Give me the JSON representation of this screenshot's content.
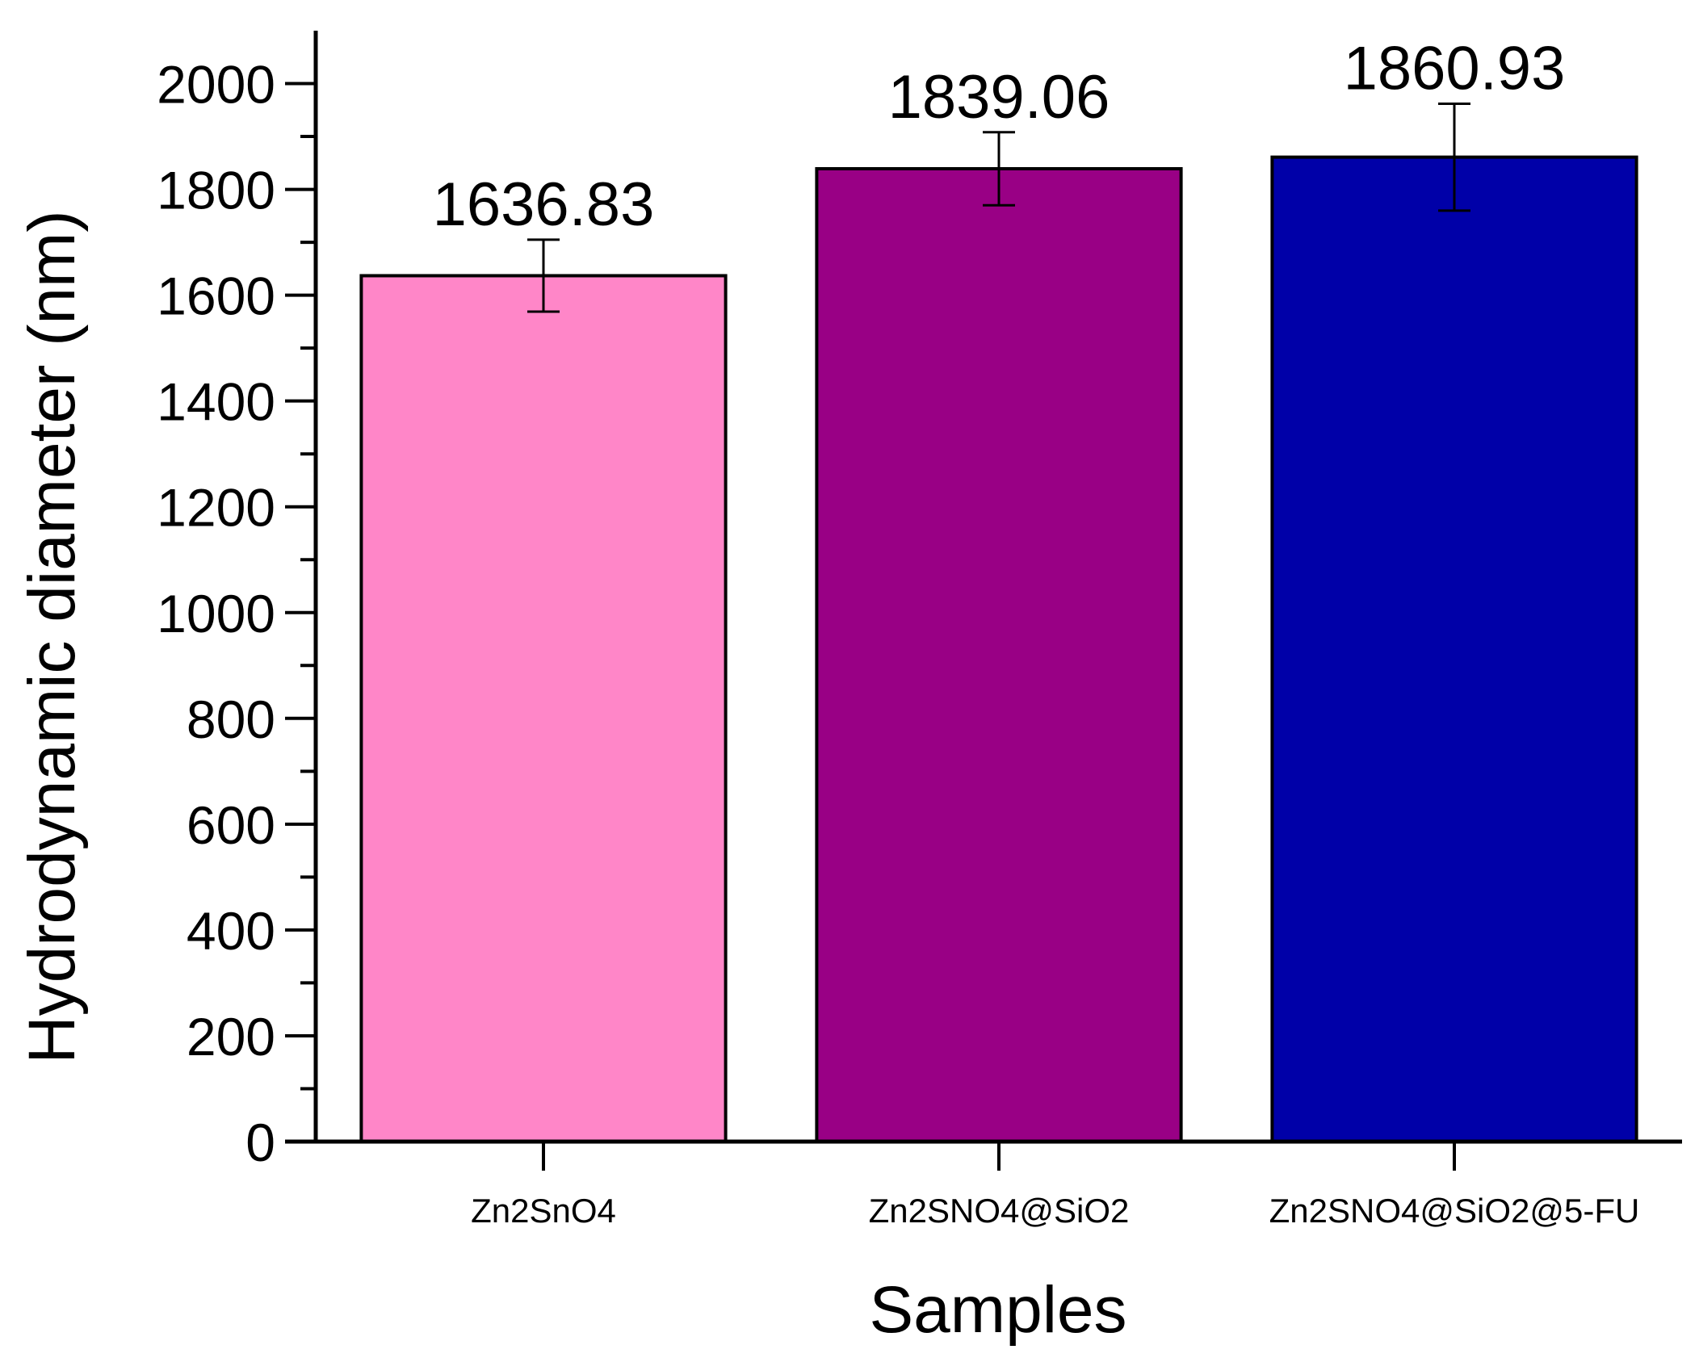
{
  "chart_data": {
    "type": "bar",
    "x_label": "Samples",
    "y_label": "Hydrodynamic diameter (nm)",
    "categories": [
      "Zn2SnO4",
      "Zn2SNO4@SiO2",
      "Zn2SNO4@SiO2@5-FU"
    ],
    "values": [
      1636.83,
      1839.06,
      1860.93
    ],
    "errors": [
      68,
      69,
      101
    ],
    "colors": [
      "#ff86c8",
      "#990085",
      "#0000a8"
    ],
    "ylim": [
      0,
      2100
    ],
    "yticks": [
      0,
      200,
      400,
      600,
      800,
      1000,
      1200,
      1400,
      1600,
      1800,
      2000
    ],
    "grid": false
  }
}
